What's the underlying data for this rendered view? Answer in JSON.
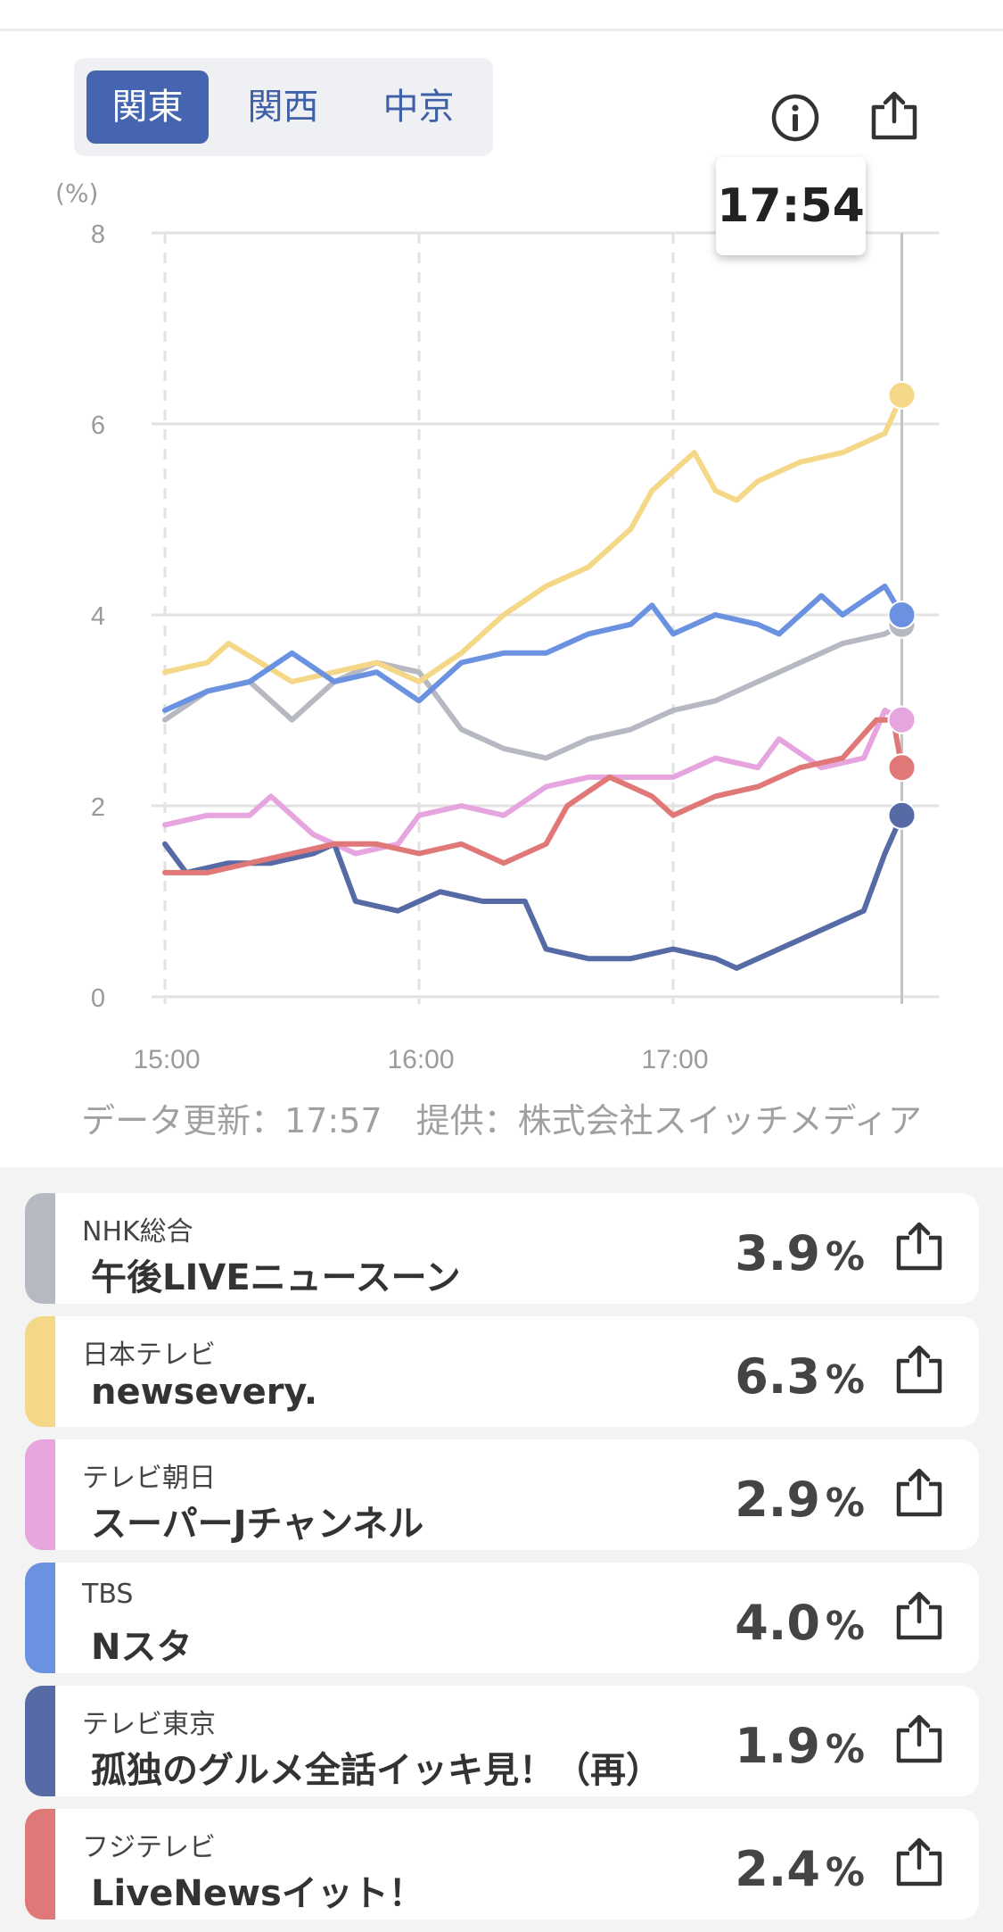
{
  "region_tabs": [
    {
      "label": "関東",
      "active": true
    },
    {
      "label": "関西",
      "active": false
    },
    {
      "label": "中京",
      "active": false
    }
  ],
  "icons": {
    "info": "info-circle-icon",
    "share": "share-upload-icon"
  },
  "tooltip": {
    "time": "17:54"
  },
  "chart_data": {
    "type": "line",
    "y_unit": "(%)",
    "ylim": [
      0,
      8
    ],
    "y_ticks": [
      "0",
      "2",
      "4",
      "6",
      "8"
    ],
    "x_range": [
      "15:00",
      "17:59"
    ],
    "x_ticks": [
      "15:00",
      "16:00",
      "17:00"
    ],
    "cursor_time": "17:54",
    "grid": true,
    "series": [
      {
        "name": "NHK総合",
        "color": "#b6b9c2",
        "points": [
          [
            "15:00",
            2.9
          ],
          [
            "15:10",
            3.2
          ],
          [
            "15:20",
            3.3
          ],
          [
            "15:30",
            2.9
          ],
          [
            "15:40",
            3.3
          ],
          [
            "15:50",
            3.5
          ],
          [
            "16:00",
            3.4
          ],
          [
            "16:10",
            2.8
          ],
          [
            "16:20",
            2.6
          ],
          [
            "16:30",
            2.5
          ],
          [
            "16:40",
            2.7
          ],
          [
            "16:50",
            2.8
          ],
          [
            "17:00",
            3.0
          ],
          [
            "17:10",
            3.1
          ],
          [
            "17:20",
            3.3
          ],
          [
            "17:30",
            3.5
          ],
          [
            "17:40",
            3.7
          ],
          [
            "17:50",
            3.8
          ],
          [
            "17:54",
            3.9
          ]
        ]
      },
      {
        "name": "日本テレビ",
        "color": "#f5d887",
        "points": [
          [
            "15:00",
            3.4
          ],
          [
            "15:10",
            3.5
          ],
          [
            "15:15",
            3.7
          ],
          [
            "15:30",
            3.3
          ],
          [
            "15:40",
            3.4
          ],
          [
            "15:50",
            3.5
          ],
          [
            "16:00",
            3.3
          ],
          [
            "16:10",
            3.6
          ],
          [
            "16:20",
            4.0
          ],
          [
            "16:30",
            4.3
          ],
          [
            "16:40",
            4.5
          ],
          [
            "16:50",
            4.9
          ],
          [
            "16:55",
            5.3
          ],
          [
            "17:00",
            5.5
          ],
          [
            "17:05",
            5.7
          ],
          [
            "17:10",
            5.3
          ],
          [
            "17:15",
            5.2
          ],
          [
            "17:20",
            5.4
          ],
          [
            "17:30",
            5.6
          ],
          [
            "17:40",
            5.7
          ],
          [
            "17:50",
            5.9
          ],
          [
            "17:54",
            6.3
          ]
        ]
      },
      {
        "name": "テレビ朝日",
        "color": "#e6a5de",
        "points": [
          [
            "15:00",
            1.8
          ],
          [
            "15:10",
            1.9
          ],
          [
            "15:20",
            1.9
          ],
          [
            "15:25",
            2.1
          ],
          [
            "15:35",
            1.7
          ],
          [
            "15:45",
            1.5
          ],
          [
            "15:55",
            1.6
          ],
          [
            "16:00",
            1.9
          ],
          [
            "16:10",
            2.0
          ],
          [
            "16:20",
            1.9
          ],
          [
            "16:30",
            2.2
          ],
          [
            "16:40",
            2.3
          ],
          [
            "16:50",
            2.3
          ],
          [
            "17:00",
            2.3
          ],
          [
            "17:10",
            2.5
          ],
          [
            "17:20",
            2.4
          ],
          [
            "17:25",
            2.7
          ],
          [
            "17:35",
            2.4
          ],
          [
            "17:45",
            2.5
          ],
          [
            "17:50",
            3.0
          ],
          [
            "17:54",
            2.9
          ]
        ]
      },
      {
        "name": "TBS",
        "color": "#6a92e0",
        "points": [
          [
            "15:00",
            3.0
          ],
          [
            "15:10",
            3.2
          ],
          [
            "15:20",
            3.3
          ],
          [
            "15:30",
            3.6
          ],
          [
            "15:40",
            3.3
          ],
          [
            "15:50",
            3.4
          ],
          [
            "16:00",
            3.1
          ],
          [
            "16:10",
            3.5
          ],
          [
            "16:20",
            3.6
          ],
          [
            "16:30",
            3.6
          ],
          [
            "16:40",
            3.8
          ],
          [
            "16:50",
            3.9
          ],
          [
            "16:55",
            4.1
          ],
          [
            "17:00",
            3.8
          ],
          [
            "17:10",
            4.0
          ],
          [
            "17:20",
            3.9
          ],
          [
            "17:25",
            3.8
          ],
          [
            "17:35",
            4.2
          ],
          [
            "17:40",
            4.0
          ],
          [
            "17:50",
            4.3
          ],
          [
            "17:54",
            4.0
          ]
        ]
      },
      {
        "name": "テレビ東京",
        "color": "#566aa6",
        "points": [
          [
            "15:00",
            1.6
          ],
          [
            "15:05",
            1.3
          ],
          [
            "15:15",
            1.4
          ],
          [
            "15:25",
            1.4
          ],
          [
            "15:35",
            1.5
          ],
          [
            "15:40",
            1.6
          ],
          [
            "15:45",
            1.0
          ],
          [
            "15:55",
            0.9
          ],
          [
            "16:00",
            1.0
          ],
          [
            "16:05",
            1.1
          ],
          [
            "16:15",
            1.0
          ],
          [
            "16:25",
            1.0
          ],
          [
            "16:30",
            0.5
          ],
          [
            "16:40",
            0.4
          ],
          [
            "16:50",
            0.4
          ],
          [
            "17:00",
            0.5
          ],
          [
            "17:10",
            0.4
          ],
          [
            "17:15",
            0.3
          ],
          [
            "17:25",
            0.5
          ],
          [
            "17:35",
            0.7
          ],
          [
            "17:45",
            0.9
          ],
          [
            "17:50",
            1.5
          ],
          [
            "17:54",
            1.9
          ]
        ]
      },
      {
        "name": "フジテレビ",
        "color": "#e07878",
        "points": [
          [
            "15:00",
            1.3
          ],
          [
            "15:10",
            1.3
          ],
          [
            "15:20",
            1.4
          ],
          [
            "15:30",
            1.5
          ],
          [
            "15:40",
            1.6
          ],
          [
            "15:50",
            1.6
          ],
          [
            "16:00",
            1.5
          ],
          [
            "16:10",
            1.6
          ],
          [
            "16:20",
            1.4
          ],
          [
            "16:30",
            1.6
          ],
          [
            "16:35",
            2.0
          ],
          [
            "16:45",
            2.3
          ],
          [
            "16:55",
            2.1
          ],
          [
            "17:00",
            1.9
          ],
          [
            "17:10",
            2.1
          ],
          [
            "17:20",
            2.2
          ],
          [
            "17:30",
            2.4
          ],
          [
            "17:40",
            2.5
          ],
          [
            "17:48",
            2.9
          ],
          [
            "17:52",
            2.9
          ],
          [
            "17:54",
            2.4
          ]
        ]
      }
    ]
  },
  "update_info": "データ更新：17:57　提供：株式会社スイッチメディア",
  "channels": [
    {
      "channel": "NHK総合",
      "program": "午後LIVEニュースーン",
      "rating": "3.9",
      "unit": "%",
      "color": "#b6b9c2"
    },
    {
      "channel": "日本テレビ",
      "program": "newsevery.",
      "rating": "6.3",
      "unit": "%",
      "color": "#f5d887"
    },
    {
      "channel": "テレビ朝日",
      "program": "スーパーJチャンネル",
      "rating": "2.9",
      "unit": "%",
      "color": "#e6a5de"
    },
    {
      "channel": "TBS",
      "program": "Nスタ",
      "rating": "4.0",
      "unit": "%",
      "color": "#6a92e0"
    },
    {
      "channel": "テレビ東京",
      "program": "孤独のグルメ全話イッキ見！（再）",
      "rating": "1.9",
      "unit": "%",
      "color": "#566aa6"
    },
    {
      "channel": "フジテレビ",
      "program": "LiveNewsイット！",
      "rating": "2.4",
      "unit": "%",
      "color": "#e07878"
    }
  ]
}
